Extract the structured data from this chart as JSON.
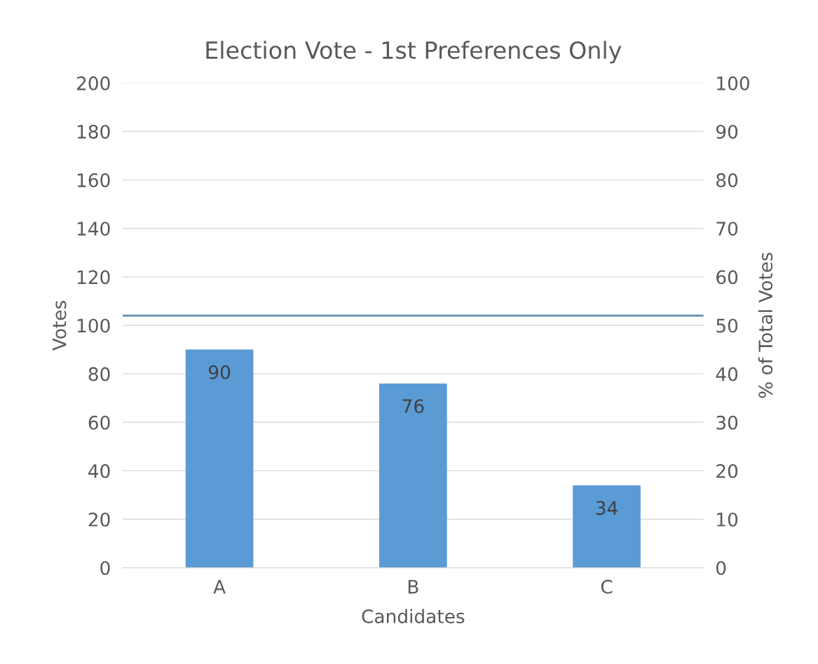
{
  "chart_data": {
    "type": "bar",
    "title": "Election Vote - 1st Preferences Only",
    "xlabel": "Candidates",
    "ylabel": "Votes",
    "y2label": "% of Total Votes",
    "categories": [
      "A",
      "B",
      "C"
    ],
    "series": [
      {
        "color": "#5b9bd5",
        "values": [
          90,
          76,
          34
        ]
      }
    ],
    "data_labels": true,
    "ylim": [
      0,
      200
    ],
    "yticks": [
      0,
      20,
      40,
      60,
      80,
      100,
      120,
      140,
      160,
      180,
      200
    ],
    "y2lim": [
      0,
      100
    ],
    "y2ticks": [
      0,
      10,
      20,
      30,
      40,
      50,
      60,
      70,
      80,
      90,
      100
    ],
    "ref_lines": [
      {
        "axis": "y2",
        "value": 52,
        "color": "#5f8fb4"
      }
    ],
    "grid": "y",
    "legend": false
  }
}
